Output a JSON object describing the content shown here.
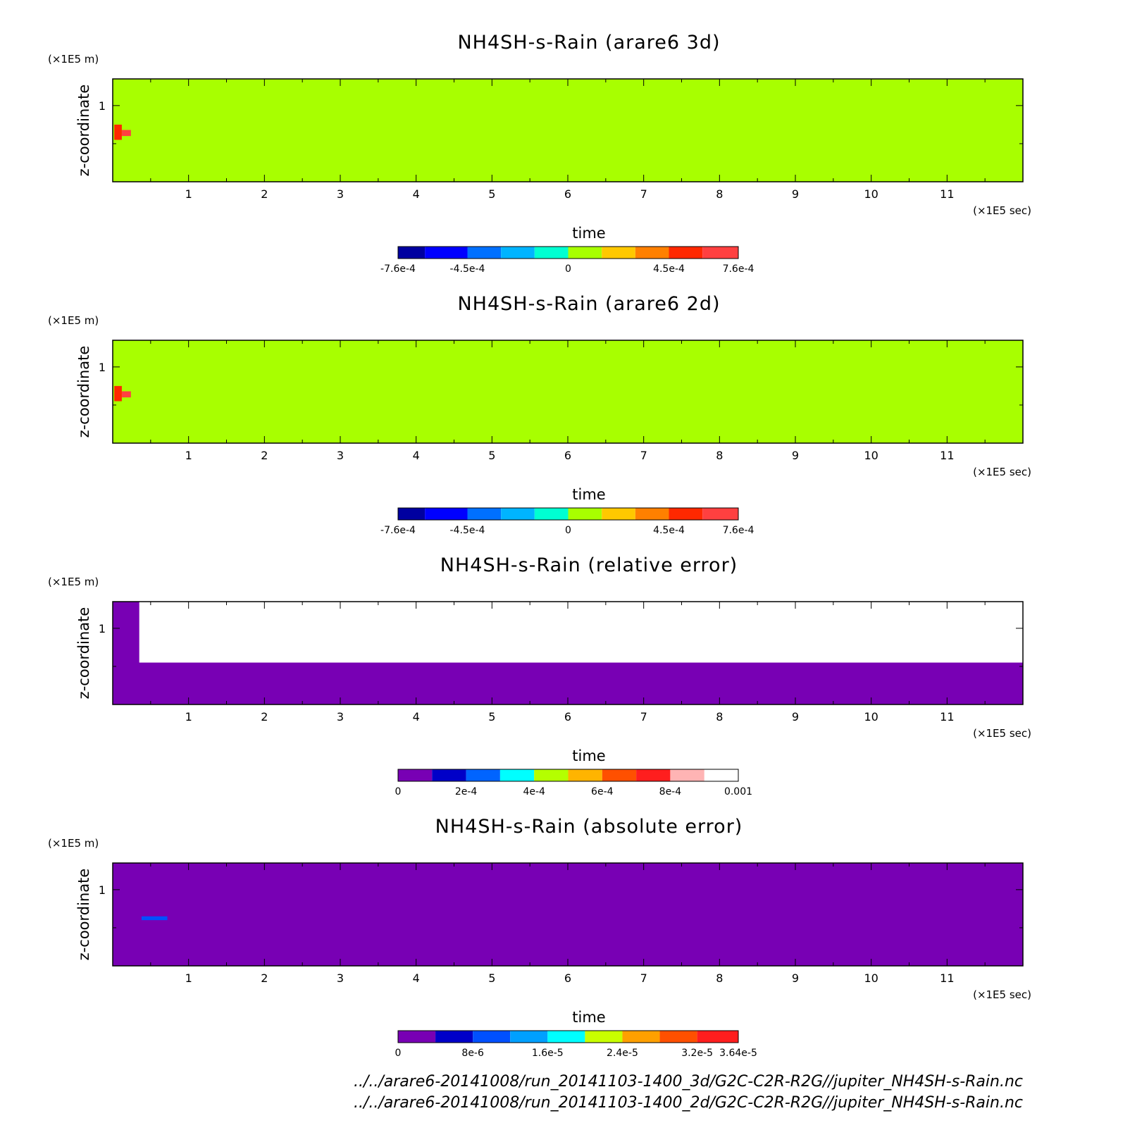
{
  "chart_data": [
    {
      "type": "heatmap",
      "title": "NH4SH-s-Rain (arare6 3d)",
      "xlabel": "time",
      "ylabel": "z-coordinate",
      "x_unit": "(×1E5 sec)",
      "y_unit": "(×1E5 m)",
      "xlim": [
        0,
        12
      ],
      "ylim": [
        0.0,
        1.35
      ],
      "x_ticks": [
        1,
        2,
        3,
        4,
        5,
        6,
        7,
        8,
        9,
        10,
        11
      ],
      "y_ticks": [
        1
      ],
      "background_level": 0,
      "features": [
        {
          "x": [
            0.02,
            0.12
          ],
          "y": [
            0.55,
            0.75
          ],
          "level": 0.00052
        },
        {
          "x": [
            0.12,
            0.24
          ],
          "y": [
            0.6,
            0.68
          ],
          "level": 0.00065
        }
      ],
      "colorbar": {
        "levels": [
          -0.00076,
          -0.00064,
          -0.00045,
          -0.0003,
          -0.00015,
          0,
          0.00015,
          0.0003,
          0.00045,
          0.0006,
          0.00076
        ],
        "colors": [
          "#0000a0",
          "#0000ff",
          "#0070ff",
          "#00b4ff",
          "#00ffd2",
          "#a8ff00",
          "#ffc800",
          "#ff8000",
          "#ff2800",
          "#ff4040",
          "#ffc0c0"
        ],
        "tick_labels": [
          "-7.6e-4",
          "-4.5e-4",
          "0",
          "4.5e-4",
          "7.6e-4"
        ]
      }
    },
    {
      "type": "heatmap",
      "title": "NH4SH-s-Rain (arare6 2d)",
      "xlabel": "time",
      "ylabel": "z-coordinate",
      "x_unit": "(×1E5 sec)",
      "y_unit": "(×1E5 m)",
      "xlim": [
        0,
        12
      ],
      "ylim": [
        0.0,
        1.35
      ],
      "x_ticks": [
        1,
        2,
        3,
        4,
        5,
        6,
        7,
        8,
        9,
        10,
        11
      ],
      "y_ticks": [
        1
      ],
      "background_level": 0,
      "features": [
        {
          "x": [
            0.02,
            0.12
          ],
          "y": [
            0.55,
            0.75
          ],
          "level": 0.00052
        },
        {
          "x": [
            0.12,
            0.24
          ],
          "y": [
            0.6,
            0.68
          ],
          "level": 0.00065
        }
      ],
      "colorbar": {
        "levels": [
          -0.00076,
          -0.00064,
          -0.00045,
          -0.0003,
          -0.00015,
          0,
          0.00015,
          0.0003,
          0.00045,
          0.0006,
          0.00076
        ],
        "colors": [
          "#0000a0",
          "#0000ff",
          "#0070ff",
          "#00b4ff",
          "#00ffd2",
          "#a8ff00",
          "#ffc800",
          "#ff8000",
          "#ff2800",
          "#ff4040",
          "#ffc0c0"
        ],
        "tick_labels": [
          "-7.6e-4",
          "-4.5e-4",
          "0",
          "4.5e-4",
          "7.6e-4"
        ]
      }
    },
    {
      "type": "heatmap",
      "title": "NH4SH-s-Rain (relative error)",
      "xlabel": "time",
      "ylabel": "z-coordinate",
      "x_unit": "(×1E5 sec)",
      "y_unit": "(×1E5 m)",
      "xlim": [
        0,
        12
      ],
      "ylim": [
        0.0,
        1.35
      ],
      "x_ticks": [
        1,
        2,
        3,
        4,
        5,
        6,
        7,
        8,
        9,
        10,
        11
      ],
      "y_ticks": [
        1
      ],
      "background_level": 0,
      "features": [
        {
          "x": [
            0.35,
            12
          ],
          "y": [
            0.55,
            1.35
          ],
          "level": "undefined"
        }
      ],
      "colorbar": {
        "levels": [
          0,
          0.0001,
          0.0002,
          0.0003,
          0.0004,
          0.0005,
          0.0006,
          0.0007,
          0.0008,
          0.0009,
          0.001
        ],
        "colors": [
          "#7800b4",
          "#0000c8",
          "#0064ff",
          "#00ffff",
          "#b4ff00",
          "#ffb400",
          "#ff5000",
          "#ff1e1e",
          "#ffb4b4"
        ],
        "tick_labels": [
          "0",
          "2e-4",
          "4e-4",
          "6e-4",
          "8e-4",
          "0.001"
        ]
      }
    },
    {
      "type": "heatmap",
      "title": "NH4SH-s-Rain (absolute error)",
      "xlabel": "time",
      "ylabel": "z-coordinate",
      "x_unit": "(×1E5 sec)",
      "y_unit": "(×1E5 m)",
      "xlim": [
        0,
        12
      ],
      "ylim": [
        0.0,
        1.35
      ],
      "x_ticks": [
        1,
        2,
        3,
        4,
        5,
        6,
        7,
        8,
        9,
        10,
        11
      ],
      "y_ticks": [
        1
      ],
      "background_level": 0,
      "features": [
        {
          "x": [
            0.38,
            0.72
          ],
          "y": [
            0.6,
            0.65
          ],
          "level": 8e-06
        }
      ],
      "colorbar": {
        "levels": [
          0,
          4e-06,
          8e-06,
          1.2e-05,
          1.6e-05,
          2e-05,
          2.4e-05,
          2.8e-05,
          3.2e-05,
          3.64e-05
        ],
        "colors": [
          "#7800b4",
          "#0000c8",
          "#0050ff",
          "#00a0ff",
          "#00ffff",
          "#c8ff00",
          "#ffa000",
          "#ff5000",
          "#ff1e1e"
        ],
        "tick_labels": [
          "0",
          "8e-6",
          "1.6e-5",
          "2.4e-5",
          "3.2e-5",
          "3.64e-5"
        ]
      }
    }
  ],
  "footer": {
    "line1": "../../arare6-20141008/run_20141103-1400_3d/G2C-C2R-R2G//jupiter_NH4SH-s-Rain.nc",
    "line2": "../../arare6-20141008/run_20141103-1400_2d/G2C-C2R-R2G//jupiter_NH4SH-s-Rain.nc"
  }
}
